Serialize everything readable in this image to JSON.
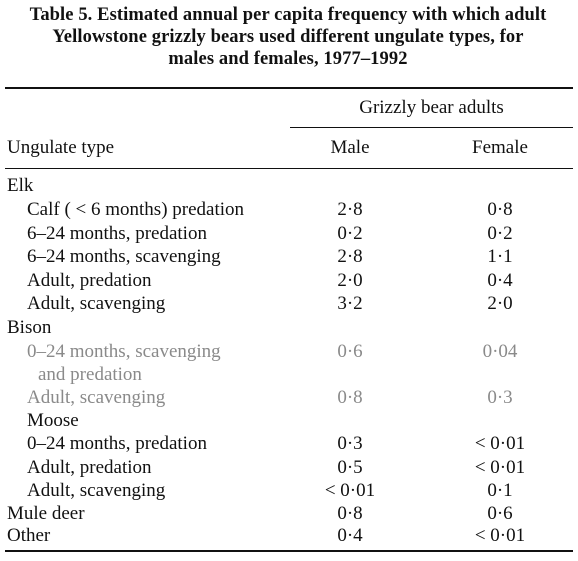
{
  "caption": {
    "line1": "Table 5. Estimated annual per capita frequency with which adult",
    "line2": "Yellowstone grizzly bears used different ungulate types, for",
    "line3": "males and females, 1977–1992"
  },
  "header": {
    "group_label": "Grizzly bear adults",
    "col_type": "Ungulate type",
    "col_male": "Male",
    "col_female": "Female"
  },
  "rows": [
    {
      "label": "Elk",
      "male": "",
      "female": ""
    },
    {
      "label": "Calf ( < 6 months) predation",
      "male": "2·8",
      "female": "0·8"
    },
    {
      "label": "6–24 months, predation",
      "male": "0·2",
      "female": "0·2"
    },
    {
      "label": "6–24 months, scavenging",
      "male": "2·8",
      "female": "1·1"
    },
    {
      "label": "Adult, predation",
      "male": "2·0",
      "female": "0·4"
    },
    {
      "label": "Adult, scavenging",
      "male": "3·2",
      "female": "2·0"
    },
    {
      "label": "Bison",
      "male": "",
      "female": ""
    },
    {
      "label": "0–24 months, scavenging",
      "male": "0·6",
      "female": "0·04"
    },
    {
      "label": "and predation",
      "male": "",
      "female": ""
    },
    {
      "label": "Adult, scavenging",
      "male": "0·8",
      "female": "0·3"
    },
    {
      "label": "Moose",
      "male": "",
      "female": ""
    },
    {
      "label": "0–24 months, predation",
      "male": "0·3",
      "female": "< 0·01"
    },
    {
      "label": "Adult, predation",
      "male": "0·5",
      "female": "< 0·01"
    },
    {
      "label": "Adult, scavenging",
      "male": "< 0·01",
      "female": "0·1"
    },
    {
      "label": "Mule deer",
      "male": "0·8",
      "female": "0·6"
    },
    {
      "label": "Other",
      "male": "0·4",
      "female": "< 0·01"
    }
  ]
}
